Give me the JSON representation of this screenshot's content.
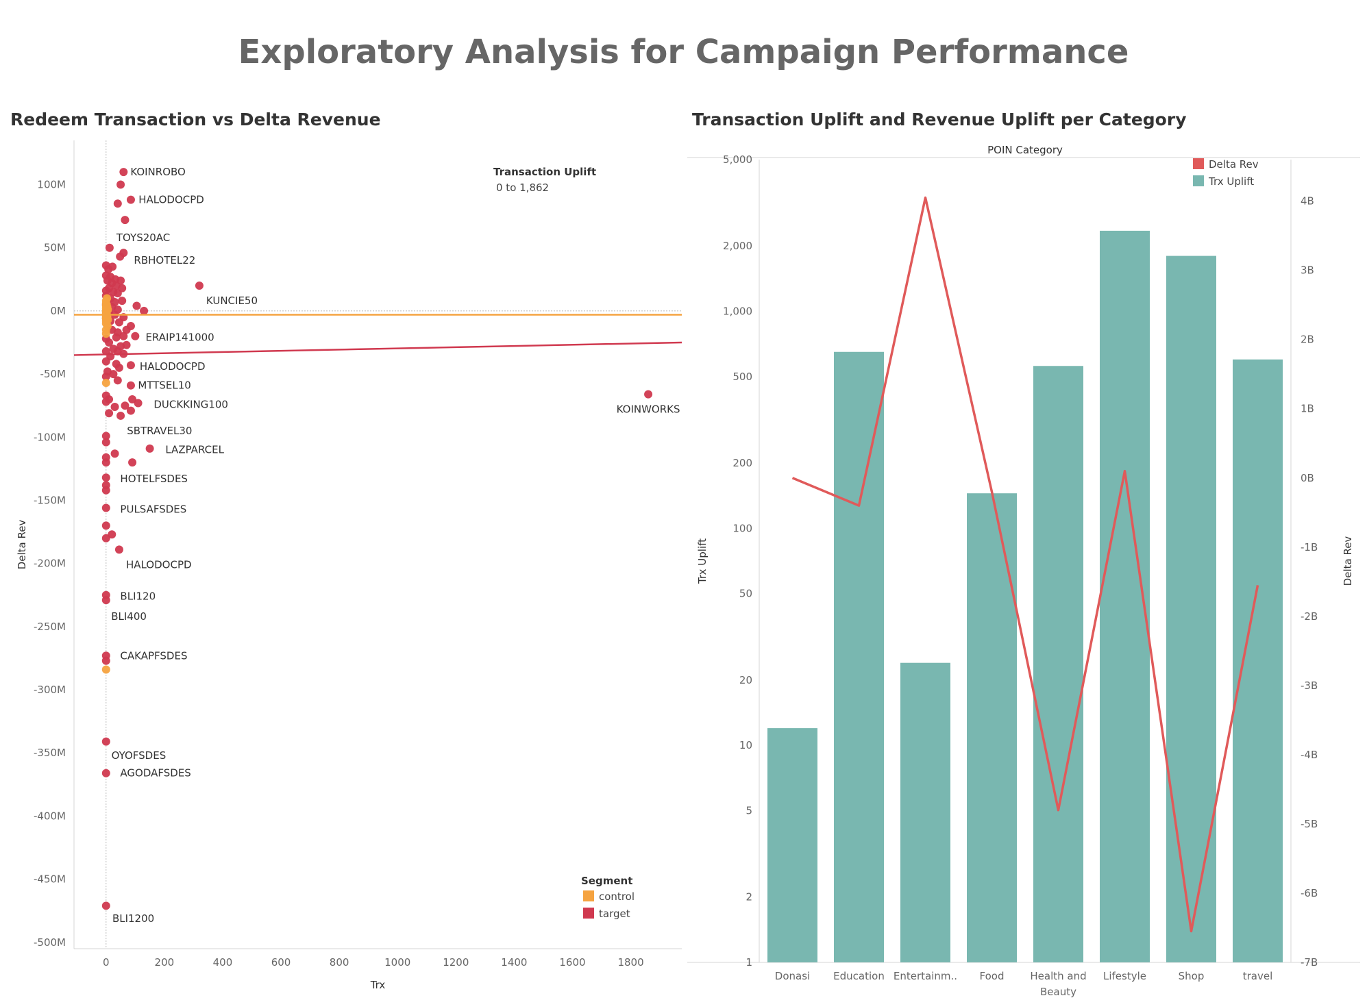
{
  "title": "Exploratory Analysis for Campaign Performance",
  "chart_data": [
    {
      "type": "scatter",
      "title": "Redeem Transaction vs Delta Revenue",
      "xlabel": "Trx",
      "ylabel": "Delta Rev",
      "xlim": [
        -110,
        1975
      ],
      "ylim": [
        -505,
        135
      ],
      "x_ticks": [
        0,
        200,
        400,
        600,
        800,
        1000,
        1200,
        1400,
        1600,
        1800
      ],
      "x_tick_labels": [
        "0",
        "200",
        "400",
        "600",
        "800",
        "1000",
        "1200",
        "1400",
        "1600",
        "1800"
      ],
      "y_ticks": [
        100,
        50,
        0,
        -50,
        -100,
        -150,
        -200,
        -250,
        -300,
        -350,
        -400,
        -450,
        -500
      ],
      "y_tick_labels": [
        "100M",
        "50M",
        "0M",
        "-50M",
        "-100M",
        "-150M",
        "-200M",
        "-250M",
        "-300M",
        "-350M",
        "-400M",
        "-450M",
        "-500M"
      ],
      "size_legend": {
        "title": "Transaction Uplift",
        "range": "0 to 1,862"
      },
      "color_legend": {
        "title": "Segment",
        "items": [
          {
            "name": "control",
            "color": "#f5a340"
          },
          {
            "name": "target",
            "color": "#d0394f"
          }
        ]
      },
      "trend_lines": [
        {
          "segment": "control",
          "color": "#f5a340",
          "y_at_xmin": -3,
          "y_at_xmax": -3
        },
        {
          "segment": "target",
          "color": "#d0394f",
          "y_at_xmin": -35,
          "y_at_xmax": -25
        }
      ],
      "labels": [
        {
          "text": "KOINROBO",
          "x": 60,
          "y": 110
        },
        {
          "text": "HALODOCPD",
          "x": 88,
          "y": 88
        },
        {
          "text": "TOYS20AC",
          "x": 12,
          "y": 58
        },
        {
          "text": "RBHOTEL22",
          "x": 72,
          "y": 40
        },
        {
          "text": "KUNCIE50",
          "x": 320,
          "y": 8
        },
        {
          "text": "ERAIP141000",
          "x": 112,
          "y": -21
        },
        {
          "text": "HALODOCPD",
          "x": 92,
          "y": -44
        },
        {
          "text": "MTTSEL10",
          "x": 86,
          "y": -59
        },
        {
          "text": "DUCKKING100",
          "x": 140,
          "y": -74
        },
        {
          "text": "KOINWORKS",
          "x": 1860,
          "y": -78
        },
        {
          "text": "SBTRAVEL30",
          "x": 48,
          "y": -95
        },
        {
          "text": "LAZPARCEL",
          "x": 180,
          "y": -110
        },
        {
          "text": "HOTELFSDES",
          "x": 25,
          "y": -133
        },
        {
          "text": "PULSAFSDES",
          "x": 25,
          "y": -157
        },
        {
          "text": "HALODOCPD",
          "x": 45,
          "y": -201
        },
        {
          "text": "BLI120",
          "x": 25,
          "y": -226
        },
        {
          "text": "BLI400",
          "x": -6,
          "y": -242
        },
        {
          "text": "CAKAPFSDES",
          "x": 25,
          "y": -273
        },
        {
          "text": "OYOFSDES",
          "x": -5,
          "y": -352
        },
        {
          "text": "AGODAFSDES",
          "x": 25,
          "y": -366
        },
        {
          "text": "BLI1200",
          "x": -2,
          "y": -481
        }
      ],
      "series": [
        {
          "name": "control",
          "color": "#f5a340",
          "points": [
            [
              0,
              8
            ],
            [
              0,
              6
            ],
            [
              0,
              4
            ],
            [
              0,
              2
            ],
            [
              0,
              0
            ],
            [
              0,
              -1
            ],
            [
              0,
              -2
            ],
            [
              0,
              -3
            ],
            [
              0,
              -4
            ],
            [
              0,
              -5
            ],
            [
              0,
              -6
            ],
            [
              0,
              -8
            ],
            [
              0,
              -10
            ],
            [
              0,
              -15
            ],
            [
              0,
              -18
            ],
            [
              2,
              5
            ],
            [
              2,
              -2
            ],
            [
              4,
              3
            ],
            [
              4,
              -5
            ],
            [
              6,
              1
            ],
            [
              6,
              -7
            ],
            [
              3,
              10
            ],
            [
              5,
              -12
            ],
            [
              0,
              -57
            ],
            [
              0,
              -284
            ]
          ]
        },
        {
          "name": "target",
          "color": "#d0394f",
          "points": [
            [
              60,
              110
            ],
            [
              50,
              100
            ],
            [
              85,
              88
            ],
            [
              40,
              85
            ],
            [
              65,
              72
            ],
            [
              12,
              50
            ],
            [
              60,
              46
            ],
            [
              48,
              43
            ],
            [
              0,
              36
            ],
            [
              22,
              35
            ],
            [
              8,
              33
            ],
            [
              0,
              28
            ],
            [
              15,
              27
            ],
            [
              32,
              25
            ],
            [
              5,
              24
            ],
            [
              50,
              24
            ],
            [
              20,
              22
            ],
            [
              35,
              20
            ],
            [
              55,
              18
            ],
            [
              10,
              18
            ],
            [
              0,
              16
            ],
            [
              25,
              15
            ],
            [
              40,
              14
            ],
            [
              0,
              12
            ],
            [
              15,
              10
            ],
            [
              5,
              8
            ],
            [
              55,
              8
            ],
            [
              30,
              7
            ],
            [
              320,
              20
            ],
            [
              105,
              4
            ],
            [
              130,
              0
            ],
            [
              0,
              5
            ],
            [
              20,
              3
            ],
            [
              40,
              1
            ],
            [
              10,
              -1
            ],
            [
              30,
              -3
            ],
            [
              60,
              -5
            ],
            [
              0,
              -6
            ],
            [
              15,
              -8
            ],
            [
              45,
              -9
            ],
            [
              85,
              -12
            ],
            [
              70,
              -15
            ],
            [
              20,
              -15
            ],
            [
              40,
              -17
            ],
            [
              100,
              -20
            ],
            [
              60,
              -20
            ],
            [
              0,
              -22
            ],
            [
              35,
              -21
            ],
            [
              10,
              -25
            ],
            [
              70,
              -27
            ],
            [
              50,
              -28
            ],
            [
              25,
              -30
            ],
            [
              0,
              -32
            ],
            [
              40,
              -32
            ],
            [
              60,
              -34
            ],
            [
              15,
              -36
            ],
            [
              0,
              -40
            ],
            [
              35,
              -42
            ],
            [
              85,
              -43
            ],
            [
              45,
              -45
            ],
            [
              5,
              -48
            ],
            [
              25,
              -50
            ],
            [
              0,
              -52
            ],
            [
              40,
              -55
            ],
            [
              85,
              -59
            ],
            [
              0,
              -67
            ],
            [
              10,
              -70
            ],
            [
              0,
              -72
            ],
            [
              90,
              -70
            ],
            [
              110,
              -73
            ],
            [
              65,
              -75
            ],
            [
              30,
              -76
            ],
            [
              85,
              -79
            ],
            [
              10,
              -81
            ],
            [
              50,
              -83
            ],
            [
              1860,
              -66
            ],
            [
              0,
              -99
            ],
            [
              0,
              -104
            ],
            [
              150,
              -109
            ],
            [
              30,
              -113
            ],
            [
              0,
              -116
            ],
            [
              0,
              -120
            ],
            [
              90,
              -120
            ],
            [
              0,
              -132
            ],
            [
              0,
              -138
            ],
            [
              0,
              -142
            ],
            [
              0,
              -156
            ],
            [
              0,
              -170
            ],
            [
              20,
              -177
            ],
            [
              0,
              -180
            ],
            [
              45,
              -189
            ],
            [
              0,
              -225
            ],
            [
              0,
              -229
            ],
            [
              0,
              -273
            ],
            [
              0,
              -277
            ],
            [
              0,
              -341
            ],
            [
              0,
              -366
            ],
            [
              0,
              -471
            ]
          ]
        }
      ]
    },
    {
      "type": "bar",
      "title": "Transaction Uplift and Revenue Uplift per Category",
      "xlabel": "POIN Category",
      "ylabel": "Trx Uplift",
      "y2label": "Delta Rev",
      "y_scale": "log",
      "ylim": [
        1,
        5000
      ],
      "y_ticks": [
        1,
        2,
        5,
        10,
        20,
        50,
        100,
        200,
        500,
        1000,
        2000,
        5000
      ],
      "y_tick_labels": [
        "1",
        "2",
        "5",
        "10",
        "20",
        "50",
        "100",
        "200",
        "500",
        "1,000",
        "2,000",
        "5,000"
      ],
      "y2lim": [
        -7,
        4.6
      ],
      "y2_ticks": [
        4,
        3,
        2,
        1,
        0,
        -1,
        -2,
        -3,
        -4,
        -5,
        -6,
        -7
      ],
      "y2_tick_labels": [
        "4B",
        "3B",
        "2B",
        "1B",
        "0B",
        "-1B",
        "-2B",
        "-3B",
        "-4B",
        "-5B",
        "-6B",
        "-7B"
      ],
      "categories": [
        "Donasi",
        "Education",
        "Entertainm..",
        "Food",
        "Health and",
        "Lifestyle",
        "Shop",
        "travel"
      ],
      "category_sublabels": [
        "",
        "",
        "",
        "",
        "Beauty",
        "",
        "",
        ""
      ],
      "legend": [
        {
          "name": "Delta Rev",
          "color": "#e05a5a"
        },
        {
          "name": "Trx Uplift",
          "color": "#79b7b0"
        }
      ],
      "series": [
        {
          "name": "Trx Uplift",
          "type": "bar",
          "color": "#79b7b0",
          "values": [
            12,
            650,
            24,
            145,
            560,
            2350,
            1800,
            600
          ]
        },
        {
          "name": "Delta Rev",
          "type": "line",
          "color": "#e05a5a",
          "axis": "right",
          "values": [
            0.0,
            -0.4,
            4.05,
            -0.2,
            -4.8,
            0.1,
            -6.55,
            -1.55
          ]
        }
      ]
    }
  ]
}
